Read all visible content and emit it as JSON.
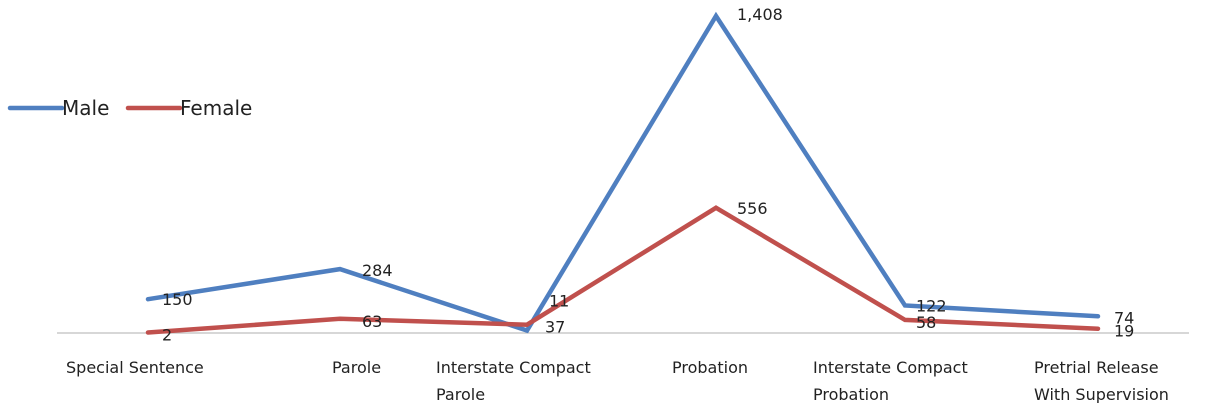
{
  "chart_data": {
    "type": "line",
    "categories": [
      [
        "Special Sentence"
      ],
      [
        "Parole"
      ],
      [
        "Interstate Compact",
        "Parole"
      ],
      [
        "Probation"
      ],
      [
        "Interstate Compact",
        "Probation"
      ],
      [
        "Pretrial Release",
        "With Supervision"
      ]
    ],
    "series": [
      {
        "name": "Male",
        "color": "#4f7fc0",
        "values": [
          150,
          284,
          11,
          1408,
          122,
          74
        ],
        "labels": [
          "150",
          "284",
          "11",
          "1,408",
          "122",
          "74"
        ]
      },
      {
        "name": "Female",
        "color": "#c0504d",
        "values": [
          2,
          63,
          37,
          556,
          58,
          19
        ],
        "labels": [
          "2",
          "63",
          "37",
          "556",
          "58",
          "19"
        ]
      }
    ],
    "ylim": [
      0,
      1408
    ],
    "grid": false,
    "legend_position": "top-left"
  }
}
